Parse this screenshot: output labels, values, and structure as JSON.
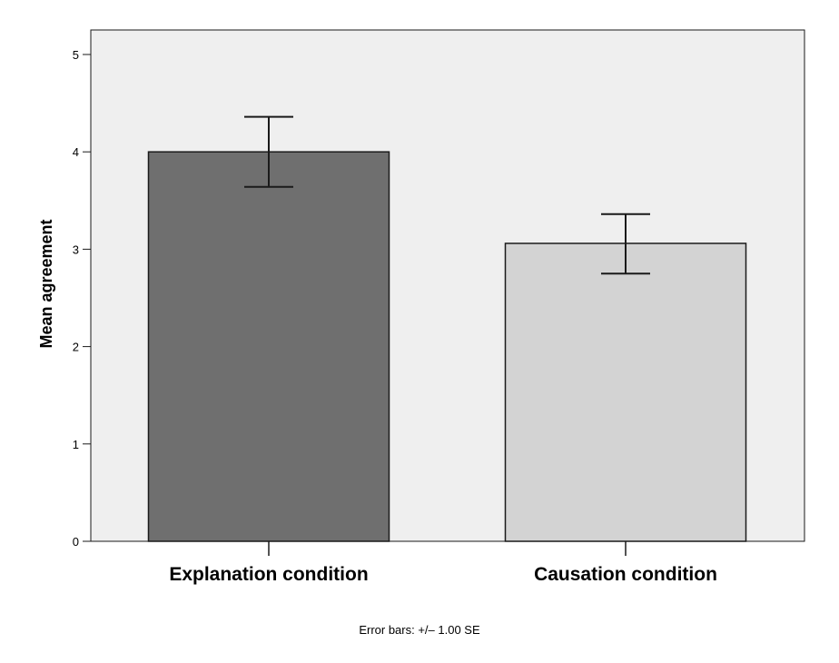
{
  "chart_data": {
    "type": "bar",
    "categories": [
      "Explanation condition",
      "Causation condition"
    ],
    "values": [
      4.0,
      3.06
    ],
    "error_bars": {
      "lower": [
        3.64,
        2.75
      ],
      "upper": [
        4.36,
        3.36
      ],
      "label": "Error bars: +/– 1.00 SE"
    },
    "ylabel": "Mean agreement",
    "xlabel": "",
    "ylim": [
      0,
      5
    ],
    "yticks": [
      "0",
      "1",
      "2",
      "3",
      "4",
      "5"
    ],
    "grid": false,
    "colors": {
      "plot_background": "#efefef",
      "bars": [
        "#6f6f6f",
        "#d3d3d3"
      ],
      "stroke": "#1a1a1a"
    }
  }
}
